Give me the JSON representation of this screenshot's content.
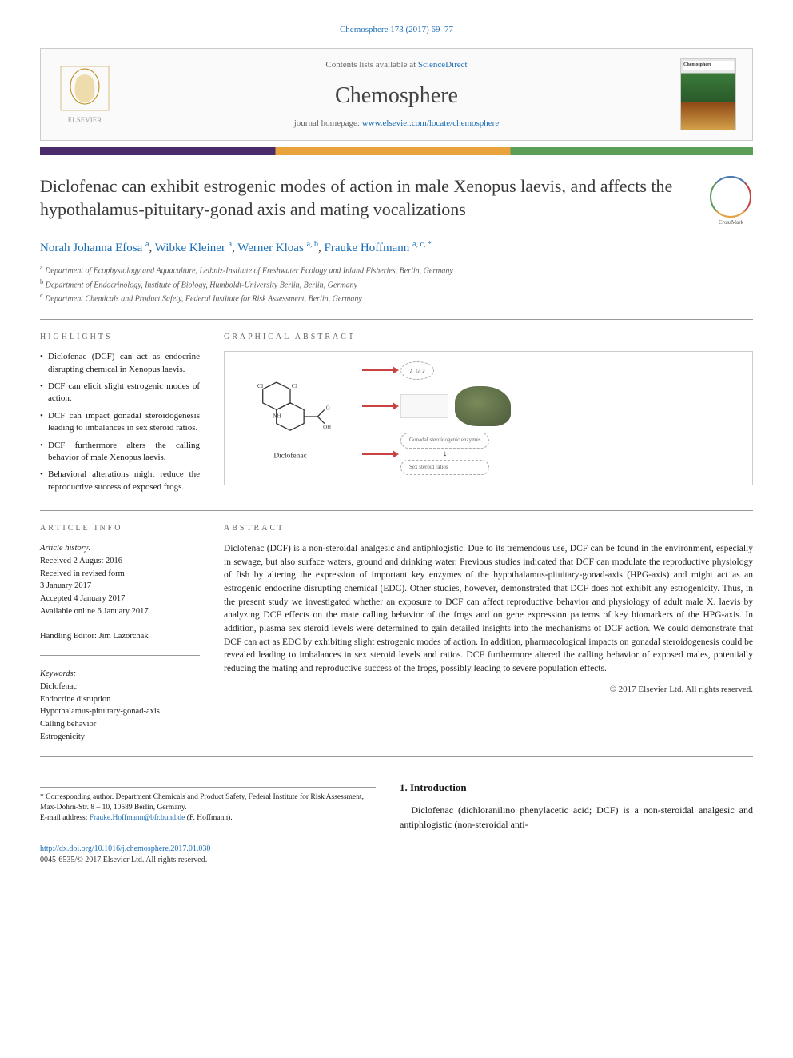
{
  "citation": {
    "text": "Chemosphere 173 (2017) 69–77",
    "journal": "Chemosphere"
  },
  "header": {
    "contents_prefix": "Contents lists available at ",
    "contents_link": "ScienceDirect",
    "journal_name": "Chemosphere",
    "homepage_prefix": "journal homepage: ",
    "homepage_url": "www.elsevier.com/locate/chemosphere"
  },
  "title": "Diclofenac can exhibit estrogenic modes of action in male Xenopus laevis, and affects the hypothalamus-pituitary-gonad axis and mating vocalizations",
  "crossmark_label": "CrossMark",
  "authors_html": "Norah Johanna Efosa <sup>a</sup>, Wibke Kleiner <sup>a</sup>, Werner Kloas <sup>a, b</sup>, Frauke Hoffmann <sup>a, c, *</sup>",
  "authors": [
    {
      "name": "Norah Johanna Efosa",
      "aff": "a"
    },
    {
      "name": "Wibke Kleiner",
      "aff": "a"
    },
    {
      "name": "Werner Kloas",
      "aff": "a, b"
    },
    {
      "name": "Frauke Hoffmann",
      "aff": "a, c, *"
    }
  ],
  "affiliations": [
    {
      "sup": "a",
      "text": "Department of Ecophysiology and Aquaculture, Leibniz-Institute of Freshwater Ecology and Inland Fisheries, Berlin, Germany"
    },
    {
      "sup": "b",
      "text": "Department of Endocrinology, Institute of Biology, Humboldt-University Berlin, Berlin, Germany"
    },
    {
      "sup": "c",
      "text": "Department Chemicals and Product Safety, Federal Institute for Risk Assessment, Berlin, Germany"
    }
  ],
  "section_labels": {
    "highlights": "HIGHLIGHTS",
    "graphical_abstract": "GRAPHICAL ABSTRACT",
    "article_info": "ARTICLE INFO",
    "abstract": "ABSTRACT"
  },
  "highlights": [
    "Diclofenac (DCF) can act as endocrine disrupting chemical in Xenopus laevis.",
    "DCF can elicit slight estrogenic modes of action.",
    "DCF can impact gonadal steroidogenesis leading to imbalances in sex steroid ratios.",
    "DCF furthermore alters the calling behavior of male Xenopus laevis.",
    "Behavioral alterations might reduce the reproductive success of exposed frogs."
  ],
  "graphical_abstract": {
    "molecule_label": "Diclofenac",
    "bubble1": "♪ ♫ ♪",
    "bubble2_top": "Gonadal steroidogenic enzymes",
    "bubble2_bottom": "Sex steroid ratios",
    "arrow_color": "#c94545"
  },
  "article_info": {
    "history_label": "Article history:",
    "received": "Received 2 August 2016",
    "revised_label": "Received in revised form",
    "revised": "3 January 2017",
    "accepted": "Accepted 4 January 2017",
    "online": "Available online 6 January 2017",
    "editor_label": "Handling Editor:",
    "editor": "Jim Lazorchak"
  },
  "keywords": {
    "label": "Keywords:",
    "items": [
      "Diclofenac",
      "Endocrine disruption",
      "Hypothalamus-pituitary-gonad-axis",
      "Calling behavior",
      "Estrogenicity"
    ]
  },
  "abstract": "Diclofenac (DCF) is a non-steroidal analgesic and antiphlogistic. Due to its tremendous use, DCF can be found in the environment, especially in sewage, but also surface waters, ground and drinking water. Previous studies indicated that DCF can modulate the reproductive physiology of fish by altering the expression of important key enzymes of the hypothalamus-pituitary-gonad-axis (HPG-axis) and might act as an estrogenic endocrine disrupting chemical (EDC). Other studies, however, demonstrated that DCF does not exhibit any estrogenicity. Thus, in the present study we investigated whether an exposure to DCF can affect reproductive behavior and physiology of adult male X. laevis by analyzing DCF effects on the mate calling behavior of the frogs and on gene expression patterns of key biomarkers of the HPG-axis. In addition, plasma sex steroid levels were determined to gain detailed insights into the mechanisms of DCF action. We could demonstrate that DCF can act as EDC by exhibiting slight estrogenic modes of action. In addition, pharmacological impacts on gonadal steroidogenesis could be revealed leading to imbalances in sex steroid levels and ratios. DCF furthermore altered the calling behavior of exposed males, potentially reducing the mating and reproductive success of the frogs, possibly leading to severe population effects.",
  "copyright": "© 2017 Elsevier Ltd. All rights reserved.",
  "introduction": {
    "heading": "1.  Introduction",
    "text": "Diclofenac (dichloranilino phenylacetic acid; DCF) is a non-steroidal analgesic and antiphlogistic (non-steroidal anti-"
  },
  "corresponding": {
    "marker": "*",
    "label": "Corresponding author.",
    "text": "Department Chemicals and Product Safety, Federal Institute for Risk Assessment, Max-Dohrn-Str. 8 – 10, 10589 Berlin, Germany.",
    "email_label": "E-mail address:",
    "email": "Frauke.Hoffmann@bfr.bund.de",
    "email_name": "(F. Hoffmann)."
  },
  "doi": {
    "url": "http://dx.doi.org/10.1016/j.chemosphere.2017.01.030",
    "issn": "0045-6535/© 2017 Elsevier Ltd. All rights reserved."
  },
  "colors": {
    "link": "#1a6db5",
    "bar1": "#4a2c6b",
    "bar2": "#e8a33d",
    "bar3": "#5a9e5a",
    "accent_red": "#c94545"
  }
}
